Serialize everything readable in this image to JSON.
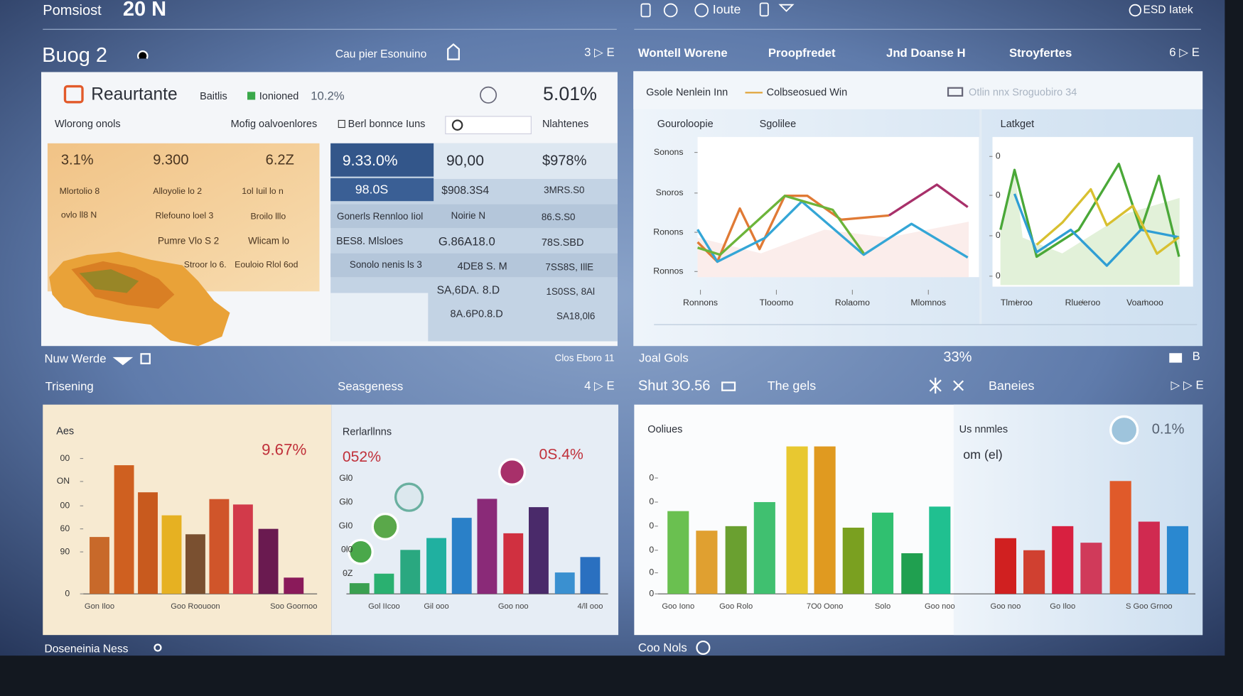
{
  "header": {
    "title": "Pomsiost",
    "badge": "20 N",
    "icon_label": "Ioute",
    "right_label": "ESD Iatek"
  },
  "left_panel": {
    "title": "Buog 2",
    "subtitle": "Cau pier Esonuino",
    "controls": "3 ▷ E",
    "card": {
      "title": "Reaurtante",
      "filter": "Baitlis",
      "legend": "Ionioned",
      "legend_value": "10.2%",
      "kpi": "5.01%",
      "columns": [
        "Wlorong onols",
        "Mofig oalvoenlores",
        "Berl bonnce Iuns",
        "Nlahtenes"
      ],
      "orange_table": [
        [
          "3.1%",
          "9.300",
          "6.2Z"
        ],
        [
          "Mlortolio 8",
          "Alloyolie lo 2",
          "1ol Iuil lo n"
        ],
        [
          "ovlo ll8 N",
          "Rlefouno loel 3",
          "Broilo lllo"
        ],
        [
          "Pumre Vlo S 2",
          "Wlicam lo"
        ],
        [
          "Stroor lo 6.",
          "Eouloio Rlol 6od"
        ]
      ],
      "blue_table": [
        [
          "9.33.0%",
          "90,00",
          "$978%"
        ],
        [
          "98.0S",
          "$908.3S4",
          "3MRS.S0"
        ],
        [
          "Gonerls Rennloo Iiol",
          "Noirie N",
          "86.S.S0"
        ],
        [
          "BES8. Mlsloes",
          "G.86A18.0",
          "78S.SBD"
        ],
        [
          "Sonolo nenis ls 3",
          "4DE8 S. M",
          "7SS8S, IllE"
        ],
        [
          "SA,6DA. 8.D",
          "1S0SS, 8Al"
        ],
        [
          "8A.6P0.8.D",
          "SA18,0l6"
        ]
      ]
    },
    "footer_left": "Nuw Werde",
    "footer_right": "Clos Eboro 11"
  },
  "right_panel": {
    "tabs": [
      "Wontell Worene",
      "Proopfredet",
      "Jnd Doanse H",
      "Stroyfertes"
    ],
    "controls": "6 ▷ E",
    "card": {
      "title": "Gsole Nenlein Inn",
      "legend": "Colbseosued Win",
      "note": "Otlin nnx Sroguobiro 34"
    },
    "footer_left": "Joal Gols",
    "footer_value": "33%",
    "footer_right": "B"
  },
  "bottom_left": {
    "title": "Trisening",
    "subtitle": "Seasgeness",
    "controls": "4 ▷ E",
    "footer": "Doseneinia Ness"
  },
  "bottom_right": {
    "title": "Shut 3O.56",
    "tab": "The gels",
    "tab_right": "Baneies",
    "controls": "▷ ▷ E",
    "side_title": "Us nnmles",
    "side_sub": "om (el)",
    "side_value": "0.1%",
    "footer": "Coo Nols"
  },
  "chart_data": [
    {
      "type": "line",
      "title": "Gouroloopie",
      "subtitle": "Sgolilee",
      "xlim": [
        0,
        100
      ],
      "xticks": [
        {
          "value": 1,
          "label": "Ronnons"
        },
        {
          "value": 28,
          "label": "Tlooomo"
        },
        {
          "value": 55,
          "label": "Rolaomo"
        },
        {
          "value": 82,
          "label": "Mlomnos"
        }
      ],
      "ylim": [
        0,
        100
      ],
      "yticks": [
        {
          "value": 89,
          "label": "Sonons"
        },
        {
          "value": 60,
          "label": "Snoros"
        },
        {
          "value": 32,
          "label": "Ronons"
        },
        {
          "value": 4,
          "label": "Ronnos"
        }
      ],
      "series": [
        {
          "color": "#e07a35",
          "x": [
            0,
            7,
            15,
            22,
            31,
            39,
            51,
            68
          ],
          "values": [
            25,
            11,
            49,
            20,
            58,
            58,
            41,
            44
          ]
        },
        {
          "color": "#a8306a",
          "x": [
            68,
            85,
            96
          ],
          "values": [
            44,
            66,
            50
          ]
        },
        {
          "color": "#34a6d6",
          "x": [
            0,
            7,
            24,
            37,
            59,
            76,
            96
          ],
          "values": [
            34,
            11,
            28,
            54,
            16,
            38,
            14
          ]
        },
        {
          "color": "#6cb43a",
          "x": [
            0,
            8,
            31,
            48,
            59
          ],
          "values": [
            21,
            16,
            58,
            48,
            17
          ]
        }
      ]
    },
    {
      "type": "line",
      "title": "Latkget",
      "xlim": [
        0,
        100
      ],
      "xticks": [
        {
          "value": 12,
          "label": "Tlmeroo"
        },
        {
          "value": 45,
          "label": "Rlueeroo"
        },
        {
          "value": 76,
          "label": "Voamooo"
        }
      ],
      "ylim": [
        0,
        100
      ],
      "yticks": [
        {
          "value": 87,
          "label": "0"
        },
        {
          "value": 61,
          "label": "0"
        },
        {
          "value": 34,
          "label": "0"
        },
        {
          "value": 7,
          "label": "0"
        }
      ],
      "series": [
        {
          "color": "#4aa838",
          "x": [
            4,
            11,
            22,
            43,
            63,
            74,
            83,
            93
          ],
          "values": [
            38,
            78,
            20,
            38,
            82,
            38,
            74,
            20
          ]
        },
        {
          "color": "#2f9ed4",
          "x": [
            11,
            22,
            39,
            57,
            74,
            93
          ],
          "values": [
            62,
            23,
            38,
            14,
            38,
            33
          ]
        },
        {
          "color": "#d8c030",
          "x": [
            22,
            35,
            49,
            57,
            70,
            82,
            93
          ],
          "values": [
            28,
            43,
            65,
            41,
            54,
            22,
            33
          ]
        }
      ]
    },
    {
      "type": "bar",
      "title": "Aes",
      "annotation": "9.67%",
      "categories": [
        "Gon Iloo",
        null,
        null,
        null,
        "Goo Roouoon",
        null,
        null,
        null,
        "Soo Goornoo"
      ],
      "values": [
        42,
        95,
        75,
        58,
        44,
        70,
        66,
        48,
        12
      ],
      "colors": [
        "#c8692a",
        "#cf6020",
        "#c85a1e",
        "#e6b122",
        "#7a5030",
        "#d0552a",
        "#d23a4a",
        "#6a1a50",
        "#8a1a5a"
      ],
      "ylim": [
        0,
        100
      ],
      "yticks": [
        {
          "value": 100,
          "label": "00"
        },
        {
          "value": 83,
          "label": "ON"
        },
        {
          "value": 65,
          "label": "00"
        },
        {
          "value": 48,
          "label": "60"
        },
        {
          "value": 31,
          "label": "90"
        },
        0
      ]
    },
    {
      "type": "bar",
      "title": "Rerlarllnns",
      "annotations": [
        "052%",
        "0S.4%"
      ],
      "categories": [
        null,
        "Gol IIcoo",
        null,
        "Gil ooo",
        null,
        null,
        "Goo noo",
        null,
        null,
        "4/ll ooo"
      ],
      "values": [
        9,
        17,
        37,
        47,
        64,
        80,
        51,
        73,
        18,
        31
      ],
      "colors": [
        "#3aa050",
        "#2ab070",
        "#2aa880",
        "#20b0a0",
        "#2a80c8",
        "#8a2a78",
        "#d03040",
        "#4a2a6a",
        "#3a90d0",
        "#2a70c0"
      ],
      "ylim": [
        0,
        100
      ],
      "yticks": [
        {
          "value": 97,
          "label": "Gl0"
        },
        {
          "value": 77,
          "label": "Gl0"
        },
        {
          "value": 57,
          "label": "GI0"
        },
        {
          "value": 37,
          "label": "0l0"
        },
        {
          "value": 17,
          "label": "0Z"
        }
      ]
    },
    {
      "type": "bar",
      "title": "Ooliues",
      "categories": [
        "Goo Iono",
        null,
        "Goo Rolo",
        null,
        null,
        "7O0 Oono",
        null,
        "Solo",
        null,
        "Goo noo",
        "Goo noo",
        null,
        "Go Iloo",
        null,
        null,
        "S Goo Grnoo",
        null
      ],
      "values": [
        55,
        42,
        45,
        61,
        98,
        98,
        44,
        54,
        27,
        58,
        37,
        29,
        45,
        34,
        75,
        48,
        45
      ],
      "colors": [
        "#6ac050",
        "#e0a030",
        "#6aa030",
        "#40c070",
        "#e8c830",
        "#e09a20",
        "#7aa020",
        "#30c070",
        "#20a050",
        "#20c090",
        "#d02020",
        "#d04030",
        "#d82040",
        "#d03a5a",
        "#e05a2a",
        "#d02a50",
        "#2a88d0"
      ],
      "ylim": [
        0,
        100
      ],
      "yticks": [
        {
          "value": 77,
          "label": "0"
        },
        {
          "value": 61,
          "label": "0"
        },
        {
          "value": 45,
          "label": "0"
        },
        {
          "value": 29,
          "label": "0"
        },
        {
          "value": 14,
          "label": "0"
        },
        0
      ]
    }
  ]
}
